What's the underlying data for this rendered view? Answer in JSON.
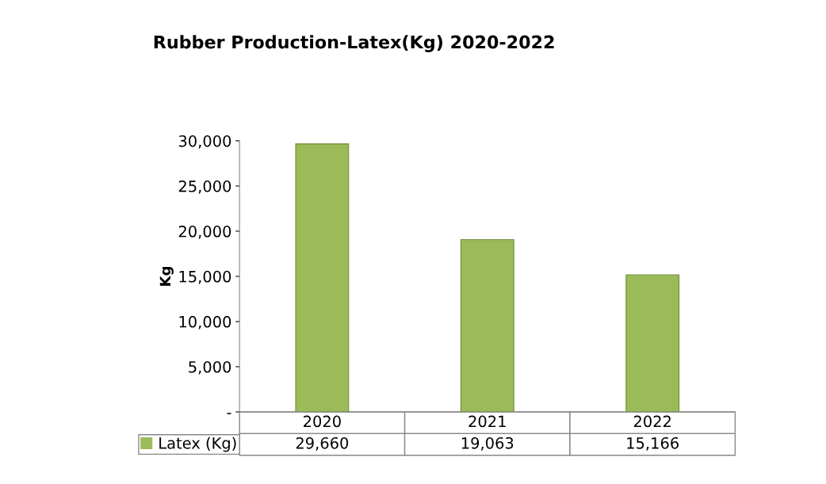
{
  "chart_data": {
    "type": "bar",
    "title": "Rubber Production-Latex(Kg) 2020-2022",
    "ylabel": "Kg",
    "categories": [
      "2020",
      "2021",
      "2022"
    ],
    "series": [
      {
        "name": "Latex (Kg)",
        "color": "#9bbb59",
        "values": [
          29660,
          19063,
          15166
        ],
        "value_labels": [
          "29,660",
          "19,063",
          "15,166"
        ]
      }
    ],
    "ylim": [
      0,
      30000
    ],
    "yticks": [
      {
        "value": 0,
        "label": "-"
      },
      {
        "value": 5000,
        "label": "5,000"
      },
      {
        "value": 10000,
        "label": "10,000"
      },
      {
        "value": 15000,
        "label": "15,000"
      },
      {
        "value": 20000,
        "label": "20,000"
      },
      {
        "value": 25000,
        "label": "25,000"
      },
      {
        "value": 30000,
        "label": "30,000"
      }
    ],
    "grid": false,
    "legend": "bottom"
  }
}
